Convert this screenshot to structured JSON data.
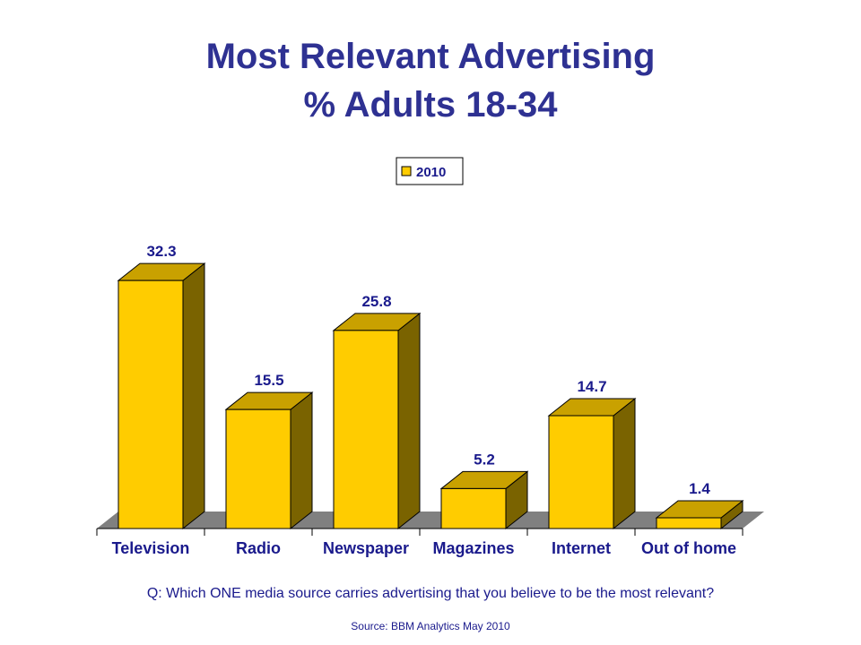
{
  "chart_data": {
    "type": "bar",
    "title": "Most Relevant Advertising",
    "subtitle": "% Adults 18-34",
    "categories": [
      "Television",
      "Radio",
      "Newspaper",
      "Magazines",
      "Internet",
      "Out of home"
    ],
    "series": [
      {
        "name": "2010",
        "values": [
          32.3,
          15.5,
          25.8,
          5.2,
          14.7,
          1.4
        ]
      }
    ],
    "value_labels": [
      "32.3",
      "15.5",
      "25.8",
      "5.2",
      "14.7",
      "1.4"
    ],
    "ylim": [
      0,
      35
    ],
    "grid": false,
    "legend": "top-center",
    "three_d": true,
    "colors": {
      "bar_front": "#ffcc00",
      "bar_top": "#c9a100",
      "bar_side": "#7a6300",
      "floor": "#808080",
      "text": "#1a1a8c",
      "title": "#2e3192"
    }
  },
  "footer": {
    "question": "Q: Which ONE media source carries advertising that you believe to be the most relevant?",
    "source": "Source: BBM Analytics May 2010"
  }
}
